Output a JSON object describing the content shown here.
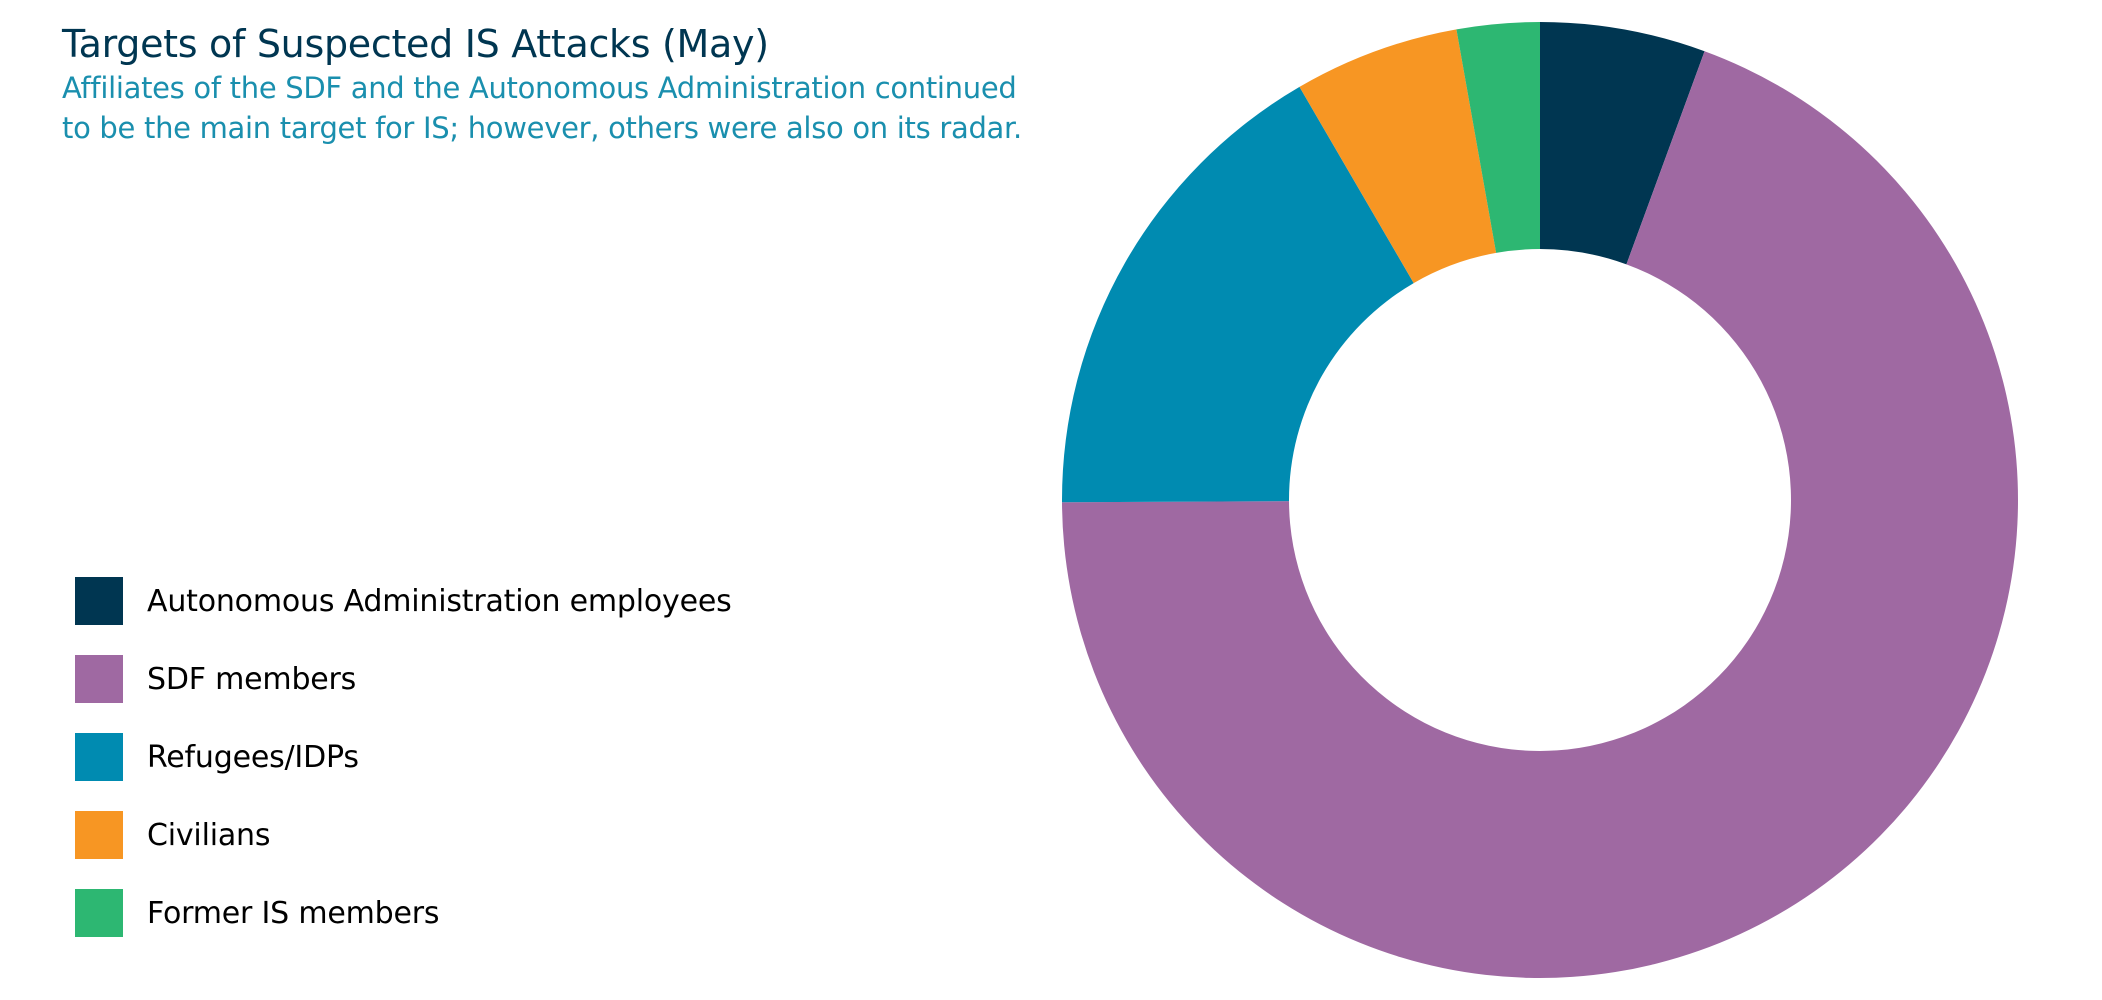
{
  "chart_data": {
    "type": "pie",
    "variant": "donut",
    "title": "Targets of Suspected IS Attacks (May)",
    "subtitle_lines": [
      "Affiliates of the SDF and the Autonomous Administration continued",
      "to be the main target for IS; however, others were also on its radar."
    ],
    "legend_placement": "left",
    "series": [
      {
        "name": "Autonomous Administration employees",
        "value": 5.6,
        "color": "#003651"
      },
      {
        "name": "SDF members",
        "value": 69.4,
        "color": "#9f69a2"
      },
      {
        "name": "Refugees/IDPs",
        "value": 16.7,
        "color": "#008bb1"
      },
      {
        "name": "Civilians",
        "value": 5.6,
        "color": "#f79623"
      },
      {
        "name": "Former IS members",
        "value": 2.8,
        "color": "#2db772"
      }
    ]
  }
}
